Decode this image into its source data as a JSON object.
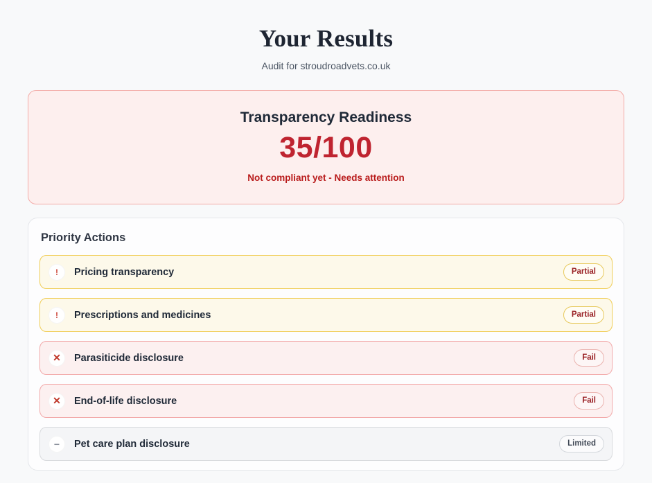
{
  "page": {
    "title": "Your Results",
    "subtitle": "Audit for stroudroadvets.co.uk"
  },
  "score_card": {
    "heading": "Transparency Readiness",
    "score": "35/100",
    "status": "Not compliant yet - Needs attention",
    "colors": {
      "background": "#fdefee",
      "border": "#f3aba7",
      "score_text": "#bf2430",
      "status_text": "#b91c1c"
    }
  },
  "priority": {
    "heading": "Priority Actions",
    "items": [
      {
        "label": "Pricing transparency",
        "badge": "Partial",
        "status": "warn",
        "icon": "exclamation-icon"
      },
      {
        "label": "Prescriptions and medicines",
        "badge": "Partial",
        "status": "warn",
        "icon": "exclamation-icon"
      },
      {
        "label": "Parasiticide disclosure",
        "badge": "Fail",
        "status": "fail",
        "icon": "x-icon"
      },
      {
        "label": "End-of-life disclosure",
        "badge": "Fail",
        "status": "fail",
        "icon": "x-icon"
      },
      {
        "label": "Pet care plan disclosure",
        "badge": "Limited",
        "status": "limited",
        "icon": "minus-icon"
      }
    ],
    "colors": {
      "warn_bg": "#fdf9ea",
      "warn_border": "#f0cd55",
      "fail_bg": "#fcf0f0",
      "fail_border": "#f2a9a9",
      "limited_bg": "#f4f5f7",
      "limited_border": "#d8dadd"
    }
  }
}
